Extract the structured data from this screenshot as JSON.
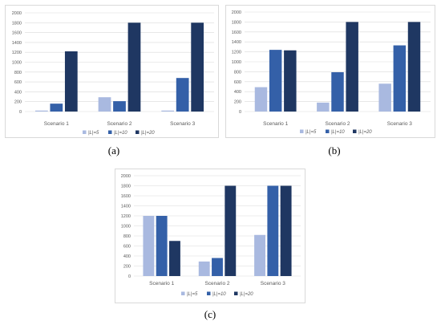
{
  "colors": {
    "light": "#a9b9e0",
    "mid": "#3460a8",
    "dark": "#1f3762",
    "grid": "#d9d9d9",
    "text": "#595959"
  },
  "chart_data": [
    {
      "label": "(a)",
      "type": "bar",
      "categories": [
        "Scenario 1",
        "Scenario 2",
        "Scenario 3"
      ],
      "ylim": [
        0,
        2000
      ],
      "yticks": [
        "0",
        "200",
        "400",
        "600",
        "800",
        "1000",
        "1200",
        "1400",
        "1600",
        "1800",
        "2000"
      ],
      "grid": true,
      "legend_position": "bottom",
      "series": [
        {
          "name": "|L|=5",
          "values": [
            20,
            290,
            20
          ]
        },
        {
          "name": "|L|=10",
          "values": [
            160,
            210,
            680
          ]
        },
        {
          "name": "|L|=20",
          "values": [
            1220,
            1800,
            1800
          ]
        }
      ]
    },
    {
      "label": "(b)",
      "type": "bar",
      "categories": [
        "Scenario 1",
        "Scenario 2",
        "Scenario 3"
      ],
      "ylim": [
        0,
        2000
      ],
      "yticks": [
        "0",
        "200",
        "400",
        "600",
        "800",
        "1000",
        "1200",
        "1400",
        "1600",
        "1800",
        "2000"
      ],
      "grid": true,
      "legend_position": "bottom",
      "series": [
        {
          "name": "|L|=5",
          "values": [
            490,
            180,
            560
          ]
        },
        {
          "name": "|L|=10",
          "values": [
            1240,
            790,
            1330
          ]
        },
        {
          "name": "|L|=20",
          "values": [
            1230,
            1800,
            1800
          ]
        }
      ]
    },
    {
      "label": "(c)",
      "type": "bar",
      "categories": [
        "Scenario 1",
        "Scenario 2",
        "Scenario 3"
      ],
      "ylim": [
        0,
        2000
      ],
      "yticks": [
        "0",
        "200",
        "400",
        "600",
        "800",
        "1000",
        "1200",
        "1400",
        "1600",
        "1800",
        "2000"
      ],
      "grid": true,
      "legend_position": "bottom",
      "series": [
        {
          "name": "|L|=5",
          "values": [
            1200,
            290,
            820
          ]
        },
        {
          "name": "|L|=10",
          "values": [
            1200,
            360,
            1800
          ]
        },
        {
          "name": "|L|=20",
          "values": [
            700,
            1800,
            1800
          ]
        }
      ]
    }
  ]
}
